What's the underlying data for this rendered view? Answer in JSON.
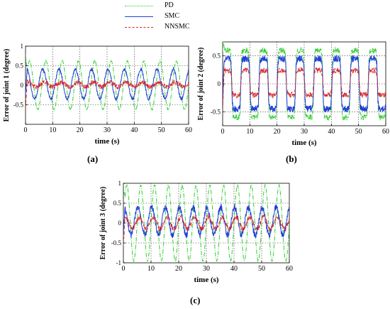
{
  "legend": {
    "items": [
      {
        "label": "PD",
        "color": "#33cc33",
        "dash": "dashdot"
      },
      {
        "label": "SMC",
        "color": "#1f3fd6",
        "dash": "solid"
      },
      {
        "label": "NNSMC",
        "color": "#d62a2a",
        "dash": "dashed"
      }
    ]
  },
  "panels": [
    {
      "id": "a",
      "letter_text": "(a)"
    },
    {
      "id": "b",
      "letter_text": "(b)"
    },
    {
      "id": "c",
      "letter_text": "(c)"
    }
  ],
  "chart_data": [
    {
      "type": "line",
      "title": "",
      "xlabel": "time (s)",
      "ylabel": "Error of joint 1 (degree)",
      "xlim": [
        0,
        60
      ],
      "ylim": [
        -1,
        1
      ],
      "xticks": [
        0,
        10,
        20,
        30,
        40,
        50,
        60
      ],
      "yticks": [
        -1,
        -0.5,
        0,
        0.5,
        1
      ],
      "ytick_labels": [
        "",
        "-0.5",
        "0",
        "0.5",
        "1"
      ],
      "grid": true,
      "series": [
        {
          "name": "PD",
          "color": "#33cc33",
          "dash": "dashdot",
          "model": "sinusoid",
          "amplitude": 0.62,
          "period": 6.0,
          "phase": 0.0,
          "offset": 0.0,
          "noise": 0.02
        },
        {
          "name": "SMC",
          "color": "#1f3fd6",
          "dash": "solid",
          "model": "sinusoid",
          "amplitude": 0.38,
          "period": 6.0,
          "phase": 1.2,
          "offset": 0.03,
          "noise": 0.04
        },
        {
          "name": "NNSMC",
          "color": "#d62a2a",
          "dash": "dashed",
          "model": "sinusoid",
          "amplitude": 0.06,
          "period": 6.0,
          "phase": 0.5,
          "offset": 0.02,
          "noise": 0.06
        }
      ]
    },
    {
      "type": "line",
      "title": "",
      "xlabel": "time (s)",
      "ylabel": "Error of joint 2 (degree)",
      "xlim": [
        0,
        60
      ],
      "ylim": [
        -0.75,
        0.75
      ],
      "xticks": [
        0,
        10,
        20,
        30,
        40,
        50,
        60
      ],
      "yticks": [
        -0.5,
        0,
        0.5
      ],
      "ytick_labels": [
        "-0.5",
        "0",
        "0.5"
      ],
      "grid": true,
      "series": [
        {
          "name": "PD",
          "color": "#33cc33",
          "dash": "dashdot",
          "model": "square",
          "amplitude": 0.6,
          "period": 6.7,
          "phase": 0.0,
          "offset": 0.0,
          "noise": 0.05
        },
        {
          "name": "SMC",
          "color": "#1f3fd6",
          "dash": "solid",
          "model": "square",
          "amplitude": 0.45,
          "period": 6.7,
          "phase": 0.0,
          "offset": 0.0,
          "noise": 0.06
        },
        {
          "name": "NNSMC",
          "color": "#d62a2a",
          "dash": "dashed",
          "model": "square",
          "amplitude": 0.22,
          "period": 6.7,
          "phase": 0.0,
          "offset": 0.02,
          "noise": 0.05
        }
      ]
    },
    {
      "type": "line",
      "title": "",
      "xlabel": "time (s)",
      "ylabel": "Error of joint 3 (degree)",
      "xlim": [
        0,
        60
      ],
      "ylim": [
        -1,
        1
      ],
      "xticks": [
        0,
        10,
        20,
        30,
        40,
        50,
        60
      ],
      "yticks": [
        -1,
        -0.5,
        0,
        0.5,
        1
      ],
      "ytick_labels": [
        "-1",
        "-0.5",
        "0",
        "0.5",
        "1"
      ],
      "grid": true,
      "series": [
        {
          "name": "PD",
          "color": "#33cc33",
          "dash": "dashdot",
          "model": "sinusoid",
          "amplitude": 0.95,
          "period": 5.0,
          "phase": 0.0,
          "offset": 0.0,
          "noise": 0.02
        },
        {
          "name": "SMC",
          "color": "#1f3fd6",
          "dash": "solid",
          "model": "sinusoid",
          "amplitude": 0.35,
          "period": 5.0,
          "phase": 1.3,
          "offset": 0.05,
          "noise": 0.08
        },
        {
          "name": "NNSMC",
          "color": "#d62a2a",
          "dash": "dashed",
          "model": "sinusoid",
          "amplitude": 0.15,
          "period": 5.0,
          "phase": 0.6,
          "offset": 0.0,
          "noise": 0.06
        }
      ]
    }
  ]
}
